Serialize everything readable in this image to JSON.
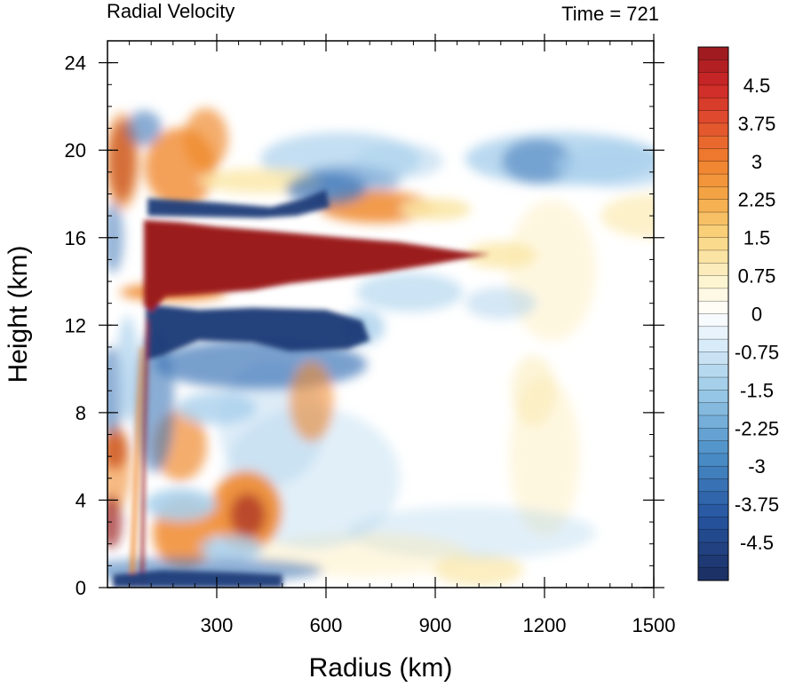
{
  "chart_data": {
    "type": "heatmap",
    "title_left": "Radial Velocity",
    "title_right": "Time = 721",
    "xlabel": "Radius (km)",
    "ylabel": "Height (km)",
    "xlim": [
      0,
      1500
    ],
    "ylim": [
      0,
      25
    ],
    "xticks": [
      300,
      600,
      900,
      1200,
      1500
    ],
    "yticks": [
      0,
      4,
      8,
      12,
      16,
      20,
      24
    ],
    "colorbar": {
      "min": -5.25,
      "max": 5.25,
      "step": 0.25,
      "tick_labels": [
        "4.5",
        "3.75",
        "3",
        "2.25",
        "1.5",
        "0.75",
        "0",
        "-0.75",
        "-1.5",
        "-2.25",
        "-3",
        "-3.75",
        "-4.5"
      ],
      "colors": {
        "strong_negative": "#1f3b78",
        "negative": "#3e76b8",
        "weak_negative": "#a9d0ec",
        "zero": "#ffffff",
        "weak_positive": "#fbe7a6",
        "positive": "#f08a2e",
        "strong_positive": "#9b1a1f"
      }
    },
    "features": [
      {
        "name": "upper-level outflow jet",
        "radius_km": [
          100,
          1050
        ],
        "height_km": [
          13.5,
          16.8
        ],
        "value_ms": 5.25
      },
      {
        "name": "inflow layer aloft",
        "radius_km": [
          100,
          700
        ],
        "height_km": [
          10.5,
          12.8
        ],
        "value_ms": -5.0
      },
      {
        "name": "boundary layer inflow",
        "radius_km": [
          20,
          480
        ],
        "height_km": [
          0,
          0.8
        ],
        "value_ms": -4.5
      },
      {
        "name": "upper inflow band",
        "radius_km": [
          110,
          600
        ],
        "height_km": [
          16.8,
          17.6
        ],
        "value_ms": -4.0
      }
    ]
  }
}
